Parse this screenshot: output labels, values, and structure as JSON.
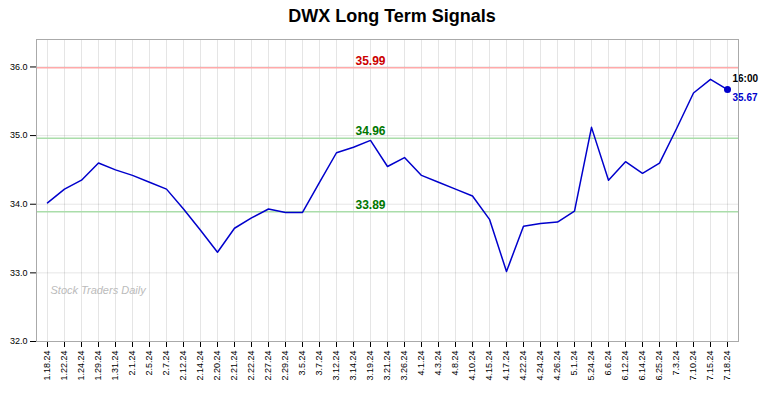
{
  "chart_data": {
    "type": "line",
    "title": "DWX Long Term Signals",
    "categories": [
      "1.18.24",
      "1.22.24",
      "1.24.24",
      "1.29.24",
      "1.31.24",
      "2.1.24",
      "2.5.24",
      "2.7.24",
      "2.12.24",
      "2.14.24",
      "2.20.24",
      "2.21.24",
      "2.22.24",
      "2.27.24",
      "2.29.24",
      "3.5.24",
      "3.7.24",
      "3.12.24",
      "3.14.24",
      "3.19.24",
      "3.21.24",
      "3.26.24",
      "4.1.24",
      "4.3.24",
      "4.8.24",
      "4.10.24",
      "4.15.24",
      "4.17.24",
      "4.22.24",
      "4.24.24",
      "4.26.24",
      "5.1.24",
      "5.24.24",
      "6.6.24",
      "6.12.24",
      "6.14.24",
      "6.25.24",
      "7.3.24",
      "7.10.24",
      "7.15.24",
      "7.18.24"
    ],
    "values": [
      34.02,
      34.22,
      34.35,
      34.6,
      34.5,
      34.42,
      34.32,
      34.22,
      33.93,
      33.62,
      33.3,
      33.65,
      33.8,
      33.93,
      33.88,
      33.88,
      34.32,
      34.75,
      34.83,
      34.93,
      34.55,
      34.68,
      34.42,
      34.32,
      34.22,
      34.12,
      33.78,
      33.02,
      33.68,
      33.72,
      33.74,
      33.9,
      35.12,
      34.35,
      34.62,
      34.45,
      34.6,
      35.1,
      35.62,
      35.82,
      35.67
    ],
    "color": "#0000cc",
    "ylim": [
      32.0,
      36.4
    ],
    "yticks": [
      32,
      33,
      34,
      35,
      36
    ],
    "grid": true,
    "reference_lines": [
      {
        "value": 35.99,
        "color": "#ffaaaa",
        "label": "35.99",
        "label_color": "#cc0000"
      },
      {
        "value": 34.96,
        "color": "#aaddaa",
        "label": "34.96",
        "label_color": "#007700"
      },
      {
        "value": 33.89,
        "color": "#aaddaa",
        "label": "33.89",
        "label_color": "#007700"
      }
    ],
    "annotations": [
      {
        "text": "16:00",
        "x": "7.18.24",
        "y": 35.67,
        "color": "#000000"
      },
      {
        "text": "35.67",
        "x": "7.18.24",
        "y": 35.67,
        "color": "#0000cc"
      },
      {
        "text": "Stock Traders Daily",
        "color": "#bbbbbb"
      }
    ]
  }
}
